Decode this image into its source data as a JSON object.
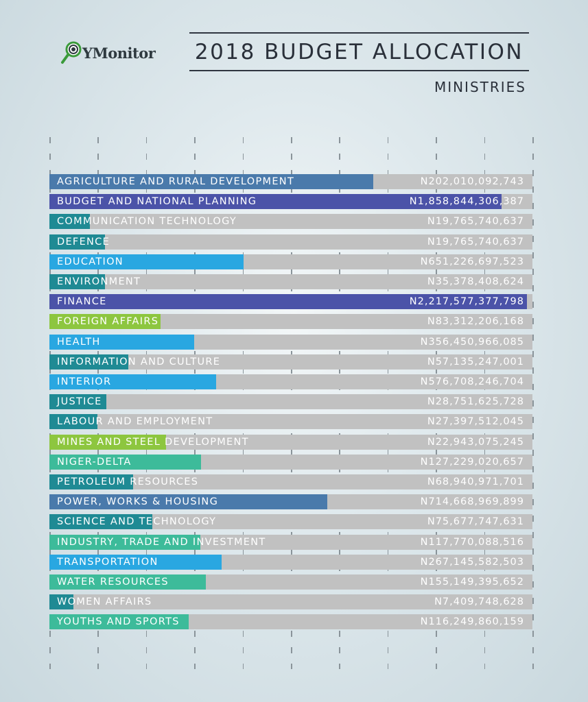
{
  "header": {
    "logo": "YMonitor",
    "title": "2018 BUDGET ALLOCATION",
    "subtitle": "MINISTRIES"
  },
  "colors": {
    "steel": "#4a7aab",
    "indigo": "#4b53a8",
    "teal": "#1f8a94",
    "sky": "#29a7e1",
    "lime": "#8dc63f",
    "mint": "#3dbb9a",
    "track": "#c1c1c1"
  },
  "chart_data": {
    "type": "bar",
    "orientation": "horizontal",
    "title": "2018 BUDGET ALLOCATION",
    "subtitle": "MINISTRIES",
    "grid": true,
    "categories": [
      "AGRICULTURE AND RURAL DEVELOPMENT",
      "BUDGET AND NATIONAL PLANNING",
      "COMMUNICATION TECHNOLOGY",
      "DEFENCE",
      "EDUCATION",
      "ENVIRONMENT",
      "FINANCE",
      "FOREIGN AFFAIRS",
      "HEALTH",
      "INFORMATION AND CULTURE",
      "INTERIOR",
      "JUSTICE",
      "LABOUR AND EMPLOYMENT",
      "MINES AND STEEL DEVELOPMENT",
      "NIGER-DELTA",
      "PETROLEUM RESOURCES",
      "POWER, WORKS & HOUSING",
      "SCIENCE AND TECHNOLOGY",
      "INDUSTRY, TRADE AND INVESTMENT",
      "TRANSPORTATION",
      "WATER RESOURCES",
      "WOMEN AFFAIRS",
      "YOUTHS AND SPORTS"
    ],
    "value_labels": [
      "N202,010,092,743",
      "N1,858,844,306,387",
      "N19,765,740,637",
      "N19,765,740,637",
      "N651,226,697,523",
      "N35,378,408,624",
      "N2,217,577,377,798",
      "N83,312,206,168",
      "N356,450,966,085",
      "N57,135,247,001",
      "N576,708,246,704",
      "N28,751,625,728",
      "N27,397,512,045",
      "N22,943,075,245",
      "N127,229,020,657",
      "N68,940,971,701",
      "N714,668,969,899",
      "N75,677,747,631",
      "N117,770,088,516",
      "N267,145,582,503",
      "N155,149,395,652",
      "N7,409,748,628",
      "N116,249,860,159"
    ],
    "values": [
      202010092743,
      1858844306387,
      19765740637,
      19765740637,
      651226697523,
      35378408624,
      2217577377798,
      83312206168,
      356450966085,
      57135247001,
      576708246704,
      28751625728,
      27397512045,
      22943075245,
      127229020657,
      68940971701,
      714668969899,
      75677747631,
      117770088516,
      267145582503,
      155149395652,
      7409748628,
      116249860159
    ],
    "bar_fill_fraction": [
      0.67,
      0.936,
      0.084,
      0.115,
      0.402,
      0.115,
      0.989,
      0.23,
      0.3,
      0.163,
      0.345,
      0.118,
      0.1,
      0.241,
      0.314,
      0.173,
      0.575,
      0.213,
      0.3125,
      0.357,
      0.324,
      0.05,
      0.288
    ],
    "bar_colors": [
      "steel",
      "indigo",
      "teal",
      "teal",
      "sky",
      "teal",
      "indigo",
      "lime",
      "sky",
      "teal",
      "sky",
      "teal",
      "teal",
      "lime",
      "mint",
      "teal",
      "steel",
      "teal",
      "mint",
      "sky",
      "mint",
      "teal",
      "mint"
    ]
  }
}
